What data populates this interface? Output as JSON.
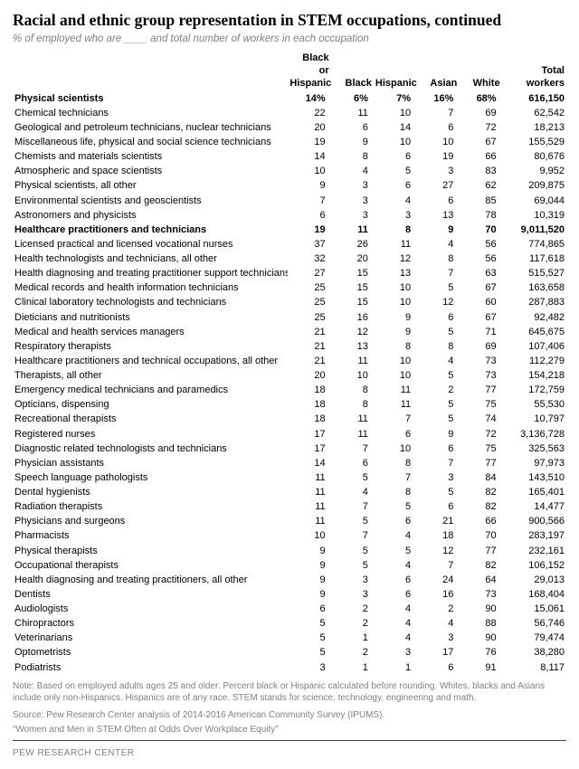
{
  "title": "Racial and ethnic group representation in STEM occupations, continued",
  "subtitle": "% of employed who are ____ and total number of workers in each occupation",
  "columns": {
    "c0": "",
    "c1": "Black or Hispanic",
    "c2": "Black",
    "c3": "Hispanic",
    "c4": "Asian",
    "c5": "White",
    "c6": "Total workers"
  },
  "sections": [
    {
      "header": {
        "label": "Physical scientists",
        "c1": "14%",
        "c2": "6%",
        "c3": "7%",
        "c4": "16%",
        "c5": "68%",
        "c6": "616,150"
      },
      "rows": [
        {
          "label": "Chemical technicians",
          "c1": "22",
          "c2": "11",
          "c3": "10",
          "c4": "7",
          "c5": "69",
          "c6": "62,542"
        },
        {
          "label": "Geological and petroleum technicians, nuclear technicians",
          "c1": "20",
          "c2": "6",
          "c3": "14",
          "c4": "6",
          "c5": "72",
          "c6": "18,213"
        },
        {
          "label": "Miscellaneous life, physical and social science technicians",
          "c1": "19",
          "c2": "9",
          "c3": "10",
          "c4": "10",
          "c5": "67",
          "c6": "155,529"
        },
        {
          "label": "Chemists and materials scientists",
          "c1": "14",
          "c2": "8",
          "c3": "6",
          "c4": "19",
          "c5": "66",
          "c6": "80,676"
        },
        {
          "label": "Atmospheric and space scientists",
          "c1": "10",
          "c2": "4",
          "c3": "5",
          "c4": "3",
          "c5": "83",
          "c6": "9,952"
        },
        {
          "label": "Physical scientists, all other",
          "c1": "9",
          "c2": "3",
          "c3": "6",
          "c4": "27",
          "c5": "62",
          "c6": "209,875"
        },
        {
          "label": "Environmental scientists and geoscientists",
          "c1": "7",
          "c2": "3",
          "c3": "4",
          "c4": "6",
          "c5": "85",
          "c6": "69,044"
        },
        {
          "label": "Astronomers and physicists",
          "c1": "6",
          "c2": "3",
          "c3": "3",
          "c4": "13",
          "c5": "78",
          "c6": "10,319"
        }
      ]
    },
    {
      "header": {
        "label": "Healthcare practitioners and technicians",
        "c1": "19",
        "c2": "11",
        "c3": "8",
        "c4": "9",
        "c5": "70",
        "c6": "9,011,520"
      },
      "rows": [
        {
          "label": "Licensed practical and licensed vocational nurses",
          "c1": "37",
          "c2": "26",
          "c3": "11",
          "c4": "4",
          "c5": "56",
          "c6": "774,865"
        },
        {
          "label": "Health technologists and technicians, all other",
          "c1": "32",
          "c2": "20",
          "c3": "12",
          "c4": "8",
          "c5": "56",
          "c6": "117,618"
        },
        {
          "label": "Health diagnosing and treating practitioner support technicians",
          "c1": "27",
          "c2": "15",
          "c3": "13",
          "c4": "7",
          "c5": "63",
          "c6": "515,527"
        },
        {
          "label": "Medical records and health information technicians",
          "c1": "25",
          "c2": "15",
          "c3": "10",
          "c4": "5",
          "c5": "67",
          "c6": "163,658"
        },
        {
          "label": "Clinical laboratory technologists and technicians",
          "c1": "25",
          "c2": "15",
          "c3": "10",
          "c4": "12",
          "c5": "60",
          "c6": "287,883"
        },
        {
          "label": "Dieticians and nutritionists",
          "c1": "25",
          "c2": "16",
          "c3": "9",
          "c4": "6",
          "c5": "67",
          "c6": "92,482"
        },
        {
          "label": "Medical and health services managers",
          "c1": "21",
          "c2": "12",
          "c3": "9",
          "c4": "5",
          "c5": "71",
          "c6": "645,675"
        },
        {
          "label": "Respiratory therapists",
          "c1": "21",
          "c2": "13",
          "c3": "8",
          "c4": "8",
          "c5": "69",
          "c6": "107,406"
        },
        {
          "label": "Healthcare practitioners and technical occupations, all other",
          "c1": "21",
          "c2": "11",
          "c3": "10",
          "c4": "4",
          "c5": "73",
          "c6": "112,279"
        },
        {
          "label": "Therapists, all other",
          "c1": "20",
          "c2": "10",
          "c3": "10",
          "c4": "5",
          "c5": "73",
          "c6": "154,218"
        },
        {
          "label": "Emergency medical technicians and paramedics",
          "c1": "18",
          "c2": "8",
          "c3": "11",
          "c4": "2",
          "c5": "77",
          "c6": "172,759"
        },
        {
          "label": "Opticians, dispensing",
          "c1": "18",
          "c2": "8",
          "c3": "11",
          "c4": "5",
          "c5": "75",
          "c6": "55,530"
        },
        {
          "label": "Recreational therapists",
          "c1": "18",
          "c2": "11",
          "c3": "7",
          "c4": "5",
          "c5": "74",
          "c6": "10,797"
        },
        {
          "label": "Registered nurses",
          "c1": "17",
          "c2": "11",
          "c3": "6",
          "c4": "9",
          "c5": "72",
          "c6": "3,136,728"
        },
        {
          "label": "Diagnostic related technologists and technicians",
          "c1": "17",
          "c2": "7",
          "c3": "10",
          "c4": "6",
          "c5": "75",
          "c6": "325,563"
        },
        {
          "label": "Physician assistants",
          "c1": "14",
          "c2": "6",
          "c3": "8",
          "c4": "7",
          "c5": "77",
          "c6": "97,973"
        },
        {
          "label": "Speech language pathologists",
          "c1": "11",
          "c2": "5",
          "c3": "7",
          "c4": "3",
          "c5": "84",
          "c6": "143,510"
        },
        {
          "label": "Dental hygienists",
          "c1": "11",
          "c2": "4",
          "c3": "8",
          "c4": "5",
          "c5": "82",
          "c6": "165,401"
        },
        {
          "label": "Radiation therapists",
          "c1": "11",
          "c2": "7",
          "c3": "5",
          "c4": "6",
          "c5": "82",
          "c6": "14,477"
        },
        {
          "label": "Physicians and surgeons",
          "c1": "11",
          "c2": "5",
          "c3": "6",
          "c4": "21",
          "c5": "66",
          "c6": "900,566"
        },
        {
          "label": "Pharmacists",
          "c1": "10",
          "c2": "7",
          "c3": "4",
          "c4": "18",
          "c5": "70",
          "c6": "283,197"
        },
        {
          "label": "Physical therapists",
          "c1": "9",
          "c2": "5",
          "c3": "5",
          "c4": "12",
          "c5": "77",
          "c6": "232,161"
        },
        {
          "label": "Occupational therapists",
          "c1": "9",
          "c2": "5",
          "c3": "4",
          "c4": "7",
          "c5": "82",
          "c6": "106,152"
        },
        {
          "label": "Health diagnosing and treating practitioners, all other",
          "c1": "9",
          "c2": "3",
          "c3": "6",
          "c4": "24",
          "c5": "64",
          "c6": "29,013"
        },
        {
          "label": "Dentists",
          "c1": "9",
          "c2": "3",
          "c3": "6",
          "c4": "16",
          "c5": "73",
          "c6": "168,404"
        },
        {
          "label": "Audiologists",
          "c1": "6",
          "c2": "2",
          "c3": "4",
          "c4": "2",
          "c5": "90",
          "c6": "15,061"
        },
        {
          "label": "Chiropractors",
          "c1": "5",
          "c2": "2",
          "c3": "4",
          "c4": "4",
          "c5": "88",
          "c6": "56,746"
        },
        {
          "label": "Veterinarians",
          "c1": "5",
          "c2": "1",
          "c3": "4",
          "c4": "3",
          "c5": "90",
          "c6": "79,474"
        },
        {
          "label": "Optometrists",
          "c1": "5",
          "c2": "2",
          "c3": "3",
          "c4": "17",
          "c5": "76",
          "c6": "38,280"
        },
        {
          "label": "Podiatrists",
          "c1": "3",
          "c2": "1",
          "c3": "1",
          "c4": "6",
          "c5": "91",
          "c6": "8,117"
        }
      ]
    }
  ],
  "note": "Note: Based on employed adults ages 25 and older. Percent black or Hispanic calculated before rounding. Whites, blacks and Asians include only non-Hispanics. Hispanics are of any race. STEM stands for science, technology, engineering and math.",
  "source": "Source: Pew Research Center analysis of 2014-2016 American Community Survey (IPUMS).",
  "quote": "“Women and Men in STEM Often at Odds Over Workplace Equity”",
  "footer": "PEW RESEARCH CENTER"
}
